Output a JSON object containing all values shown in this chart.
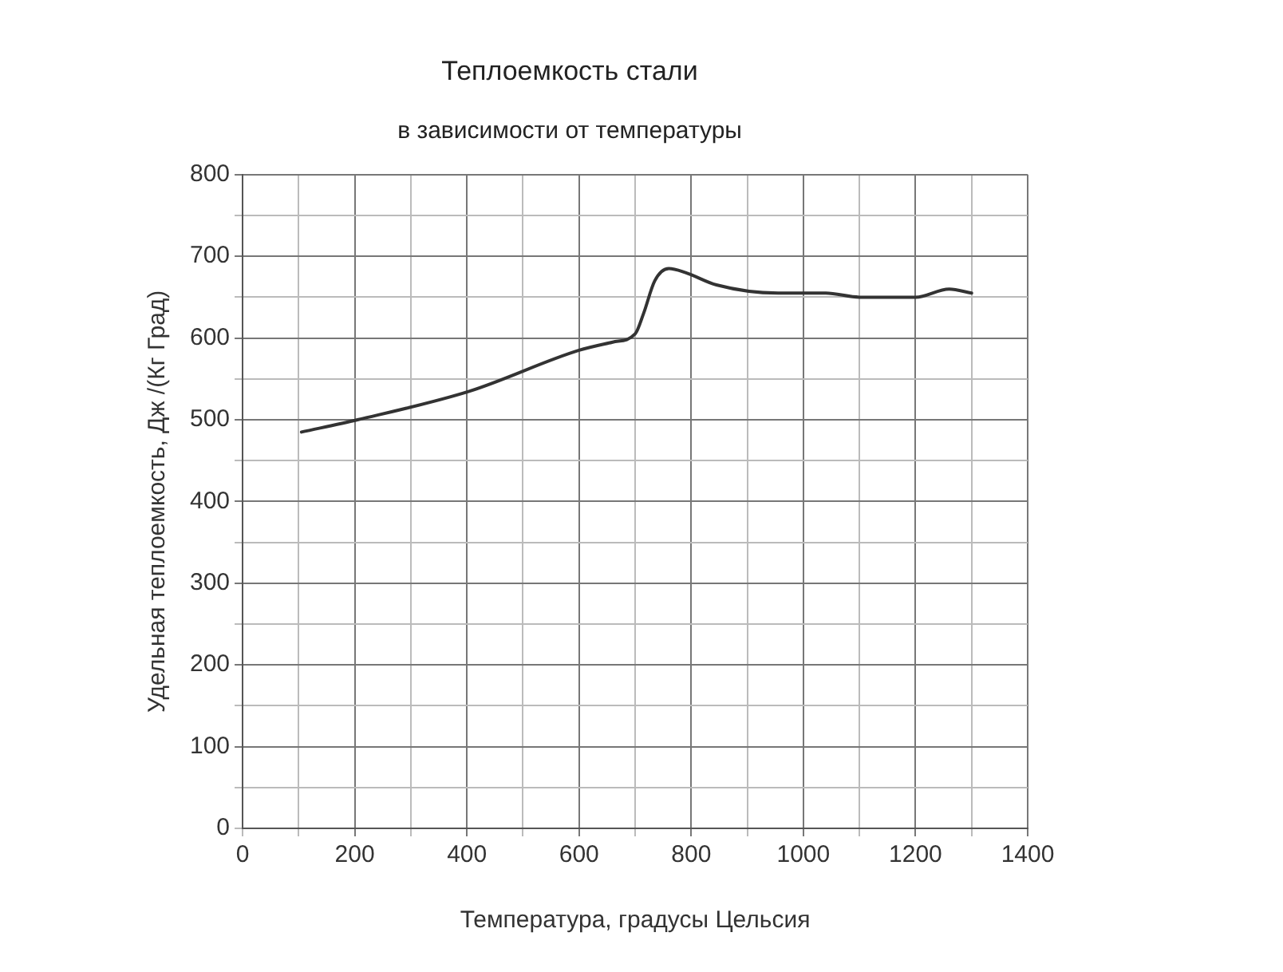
{
  "chart_data": {
    "type": "line",
    "title": "Теплоемкость стали",
    "subtitle": "в зависимости от температуры",
    "xlabel": "Температура, градусы Цельсия",
    "ylabel": "Удельная теплоемкость, Дж /(Кг Град)",
    "series": [
      {
        "color": "#333333",
        "x": [
          105,
          205,
          405,
          600,
          660,
          700,
          715,
          735,
          760,
          790,
          845,
          955,
          1040,
          1100,
          1200,
          1260,
          1300
        ],
        "values": [
          485,
          500,
          535,
          585,
          595,
          605,
          630,
          670,
          685,
          680,
          665,
          655,
          655,
          650,
          650,
          660,
          655
        ]
      }
    ],
    "xlim": [
      0,
      1400
    ],
    "xticks": [
      0,
      {
        "value": 100,
        "label": null
      },
      200,
      {
        "value": 300,
        "label": null
      },
      400,
      {
        "value": 500,
        "label": null
      },
      600,
      {
        "value": 700,
        "label": null
      },
      800,
      {
        "value": 900,
        "label": null
      },
      1000,
      {
        "value": 1100,
        "label": null
      },
      1200,
      {
        "value": 1300,
        "label": null
      },
      1400
    ],
    "ylim": [
      0,
      800
    ],
    "yticks": [
      0,
      {
        "value": 50,
        "label": null
      },
      100,
      {
        "value": 150,
        "label": null
      },
      200,
      {
        "value": 250,
        "label": null
      },
      300,
      {
        "value": 350,
        "label": null
      },
      400,
      {
        "value": 450,
        "label": null
      },
      500,
      {
        "value": 550,
        "label": null
      },
      600,
      {
        "value": 650,
        "label": null
      },
      700,
      {
        "value": 750,
        "label": null
      },
      800
    ],
    "grid": true,
    "legend": false,
    "marker": "none",
    "line_style": "solid"
  }
}
